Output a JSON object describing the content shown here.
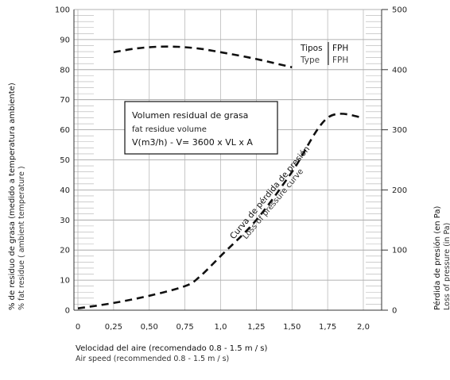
{
  "chart_data": {
    "type": "line",
    "title": "",
    "x_axis": {
      "label_es": "Velocidad del aire (recomendado 0.8 - 1.5 m / s)",
      "label_en": "Air speed (recommended 0.8 - 1.5 m / s)",
      "range": [
        0,
        2.2
      ],
      "ticks": [
        0,
        0.25,
        0.5,
        0.75,
        1.0,
        1.25,
        1.5,
        1.75,
        2.0
      ],
      "tick_labels": [
        "0",
        "0,25",
        "0,50",
        "0,75",
        "1,0",
        "1,25",
        "1,50",
        "1,75",
        "2,0"
      ]
    },
    "y_left": {
      "label_es": "% de residuo de grasa (medido a temperatura ambiente)",
      "label_en": "% fat residue ( ambient temperature )",
      "range": [
        0,
        100
      ],
      "ticks": [
        0,
        10,
        20,
        30,
        40,
        50,
        60,
        70,
        80,
        90,
        100
      ]
    },
    "y_right": {
      "label_es": "Pérdida de presión (en Pa)",
      "label_en": "Loss of pressure (in Pa)",
      "range": [
        0,
        500
      ],
      "ticks": [
        0,
        100,
        200,
        300,
        400,
        500
      ]
    },
    "series": [
      {
        "axis": "left",
        "style": "dashed",
        "color": "#111111",
        "x": [
          0.25,
          0.4,
          0.55,
          0.7,
          0.85,
          1.0,
          1.15,
          1.3,
          1.5
        ],
        "y": [
          85.8,
          87.0,
          87.6,
          87.6,
          87.0,
          85.8,
          84.5,
          83.0,
          80.8
        ]
      },
      {
        "axis": "right",
        "style": "dashed",
        "color": "#111111",
        "x": [
          0,
          0.25,
          0.5,
          0.75,
          0.85,
          1.0,
          1.25,
          1.5,
          1.75,
          2.0
        ],
        "y": [
          3,
          12,
          24,
          40,
          55,
          90,
          150,
          230,
          320,
          320
        ]
      }
    ],
    "annotations": {
      "box_line1": "Volumen residual de grasa",
      "box_line2": "fat residue volume",
      "box_line3": "V(m3/h) - V= 3600 x VL x A",
      "types_es": "Tipos",
      "types_en": "Type",
      "fph": "FPH",
      "curve_label_es": "Curva de pérdida de presión",
      "curve_label_en": "Loss of pressure curve"
    }
  }
}
